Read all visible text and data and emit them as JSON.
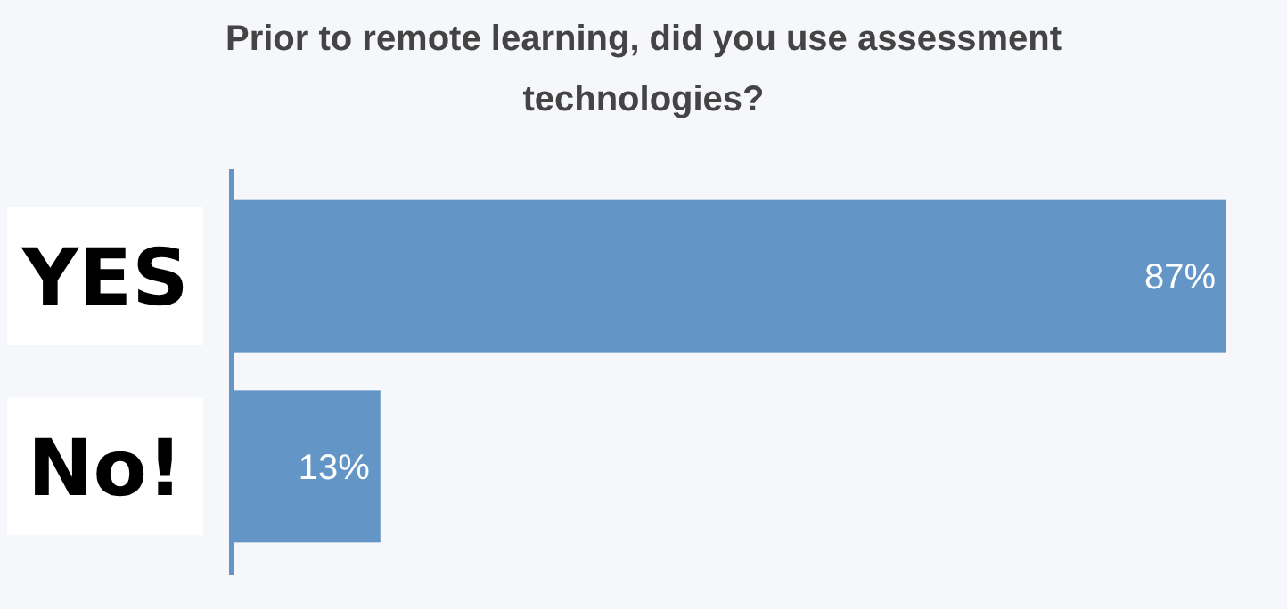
{
  "chart_data": {
    "type": "bar",
    "orientation": "horizontal",
    "title": "Prior to remote learning, did you use assessment technologies?",
    "categories": [
      "YES",
      "No!"
    ],
    "values": [
      87,
      13
    ],
    "value_labels": [
      "87%",
      "13%"
    ],
    "color": "#6395c7"
  }
}
